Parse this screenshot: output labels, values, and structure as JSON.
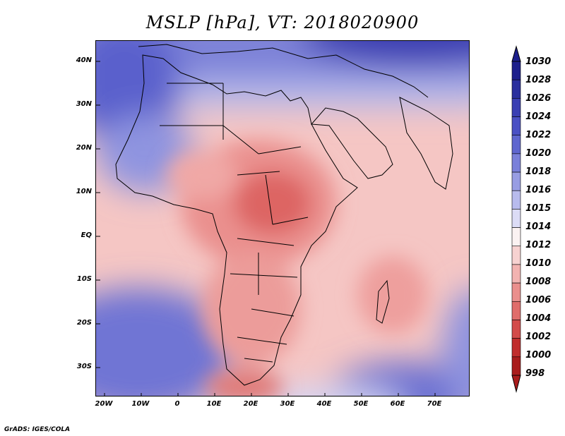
{
  "title": "MSLP [hPa], VT: 2018020900",
  "credit": "GrADS: IGES/COLA",
  "map": {
    "lat_labels": [
      "40N",
      "30N",
      "20N",
      "10N",
      "EQ",
      "10S",
      "20S",
      "30S"
    ],
    "lon_labels": [
      "20W",
      "10W",
      "0",
      "10E",
      "20E",
      "30E",
      "40E",
      "50E",
      "60E",
      "70E"
    ]
  },
  "colorbar": {
    "levels": [
      "1030",
      "1028",
      "1026",
      "1024",
      "1022",
      "1020",
      "1018",
      "1016",
      "1015",
      "1014",
      "1012",
      "1010",
      "1008",
      "1006",
      "1004",
      "1002",
      "1000",
      "998"
    ],
    "colors": [
      "#1d1f8c",
      "#2a2f9e",
      "#3a3fb3",
      "#4a50c4",
      "#5f66cf",
      "#7a80da",
      "#989de3",
      "#b8bbed",
      "#dcdcf6",
      "#fbf2f2",
      "#f7d2d1",
      "#f2b3b1",
      "#ea8f8d",
      "#e06d6b",
      "#d34b4a",
      "#c02d2d",
      "#a91c1c"
    ]
  }
}
